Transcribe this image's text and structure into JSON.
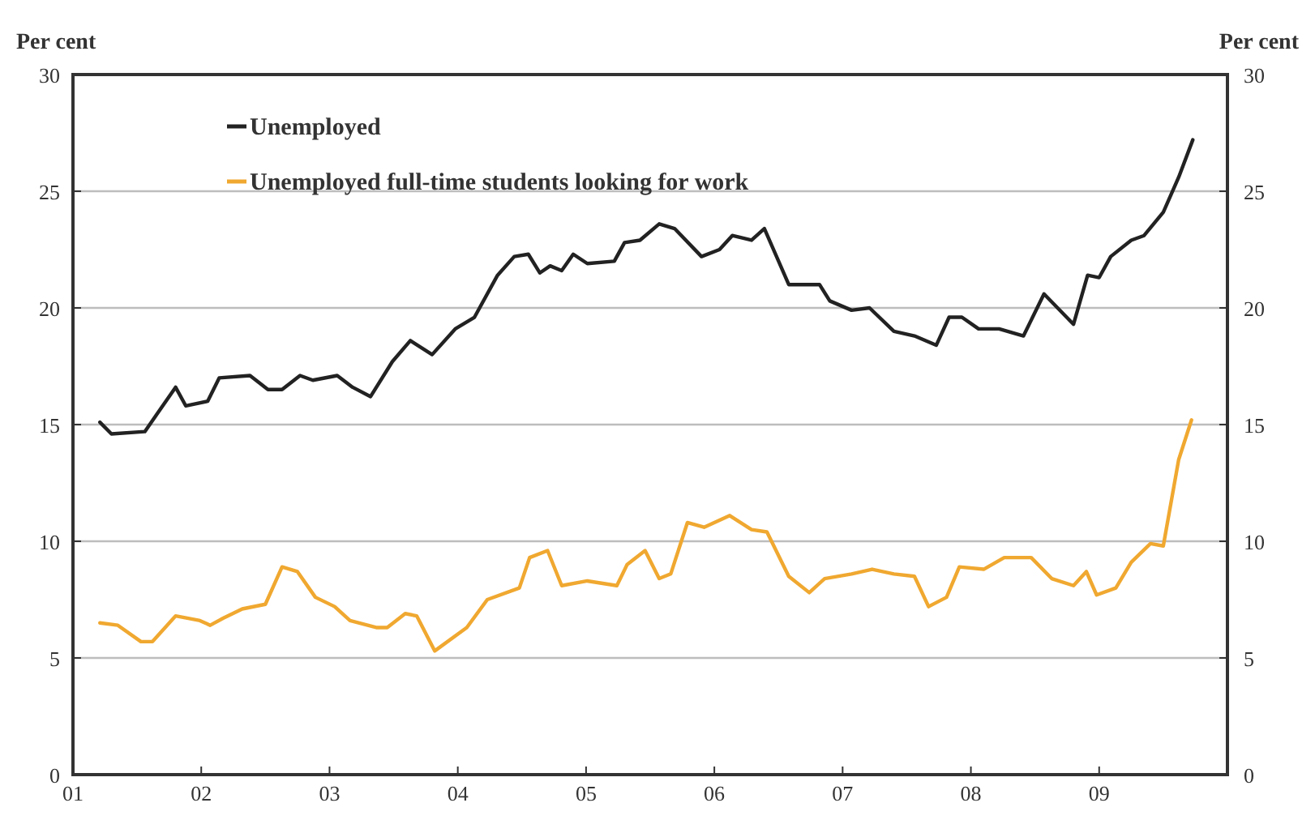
{
  "chart_data": {
    "type": "line",
    "ylabel": "Per cent",
    "y2label": "Per cent",
    "xlim": [
      2001,
      2010
    ],
    "xticks": [
      {
        "value": 2001,
        "label": "01"
      },
      {
        "value": 2002,
        "label": "02"
      },
      {
        "value": 2003,
        "label": "03"
      },
      {
        "value": 2004,
        "label": "04"
      },
      {
        "value": 2005,
        "label": "05"
      },
      {
        "value": 2006,
        "label": "06"
      },
      {
        "value": 2007,
        "label": "07"
      },
      {
        "value": 2008,
        "label": "08"
      },
      {
        "value": 2009,
        "label": "09"
      }
    ],
    "ylim": [
      0,
      30
    ],
    "yticks": [
      0,
      5,
      10,
      15,
      20,
      25,
      30
    ],
    "y2lim": [
      0,
      30
    ],
    "y2ticks": [
      0,
      5,
      10,
      15,
      20,
      25,
      30
    ],
    "grid": "y",
    "legend": "top left",
    "line_style": "solid",
    "marker": "none",
    "series": [
      {
        "name": "Unemployed",
        "color": "#222222",
        "x": [
          2001.21,
          2001.3,
          2001.56,
          2001.8,
          2001.88,
          2002.05,
          2002.14,
          2002.38,
          2002.52,
          2002.63,
          2002.77,
          2002.87,
          2003.06,
          2003.18,
          2003.32,
          2003.49,
          2003.63,
          2003.8,
          2003.98,
          2004.13,
          2004.31,
          2004.44,
          2004.55,
          2004.64,
          2004.72,
          2004.81,
          2004.9,
          2005.01,
          2005.22,
          2005.3,
          2005.42,
          2005.57,
          2005.69,
          2005.9,
          2006.04,
          2006.14,
          2006.29,
          2006.39,
          2006.58,
          2006.82,
          2006.9,
          2007.07,
          2007.21,
          2007.4,
          2007.56,
          2007.73,
          2007.83,
          2007.93,
          2008.06,
          2008.22,
          2008.41,
          2008.57,
          2008.8,
          2008.91,
          2009.0,
          2009.09,
          2009.25,
          2009.35,
          2009.5,
          2009.62,
          2009.73
        ],
        "values": [
          15.1,
          14.6,
          14.7,
          16.6,
          15.8,
          16.0,
          17.0,
          17.1,
          16.5,
          16.5,
          17.1,
          16.9,
          17.1,
          16.6,
          16.2,
          17.7,
          18.6,
          18.0,
          19.1,
          19.6,
          21.4,
          22.2,
          22.3,
          21.5,
          21.8,
          21.6,
          22.3,
          21.9,
          22.0,
          22.8,
          22.9,
          23.6,
          23.4,
          22.2,
          22.5,
          23.1,
          22.9,
          23.4,
          21.0,
          21.0,
          20.3,
          19.9,
          20.0,
          19.0,
          18.8,
          18.4,
          19.6,
          19.6,
          19.1,
          19.1,
          18.8,
          20.6,
          19.3,
          21.4,
          21.3,
          22.2,
          22.9,
          23.1,
          24.1,
          25.6,
          27.2
        ]
      },
      {
        "name": "Unemployed full-time students looking for work",
        "color": "#f0a830",
        "x": [
          2001.21,
          2001.35,
          2001.53,
          2001.62,
          2001.8,
          2001.9,
          2001.99,
          2002.07,
          2002.17,
          2002.32,
          2002.5,
          2002.63,
          2002.75,
          2002.89,
          2003.04,
          2003.16,
          2003.37,
          2003.45,
          2003.59,
          2003.68,
          2003.82,
          2004.07,
          2004.23,
          2004.48,
          2004.56,
          2004.7,
          2004.81,
          2005.01,
          2005.24,
          2005.32,
          2005.46,
          2005.57,
          2005.66,
          2005.79,
          2005.92,
          2006.12,
          2006.29,
          2006.41,
          2006.58,
          2006.74,
          2006.86,
          2007.07,
          2007.23,
          2007.4,
          2007.56,
          2007.67,
          2007.81,
          2007.91,
          2008.1,
          2008.26,
          2008.47,
          2008.63,
          2008.8,
          2008.9,
          2008.98,
          2009.13,
          2009.25,
          2009.4,
          2009.5,
          2009.62,
          2009.72
        ],
        "values": [
          6.5,
          6.4,
          5.7,
          5.7,
          6.8,
          6.7,
          6.6,
          6.4,
          6.7,
          7.1,
          7.3,
          8.9,
          8.7,
          7.6,
          7.2,
          6.6,
          6.3,
          6.3,
          6.9,
          6.8,
          5.3,
          6.3,
          7.5,
          8.0,
          9.3,
          9.6,
          8.1,
          8.3,
          8.1,
          9.0,
          9.6,
          8.4,
          8.6,
          10.8,
          10.6,
          11.1,
          10.5,
          10.4,
          8.5,
          7.8,
          8.4,
          8.6,
          8.8,
          8.6,
          8.5,
          7.2,
          7.6,
          8.9,
          8.8,
          9.3,
          9.3,
          8.4,
          8.1,
          8.7,
          7.7,
          8.0,
          9.1,
          9.9,
          9.8,
          13.5,
          15.2
        ]
      }
    ]
  }
}
